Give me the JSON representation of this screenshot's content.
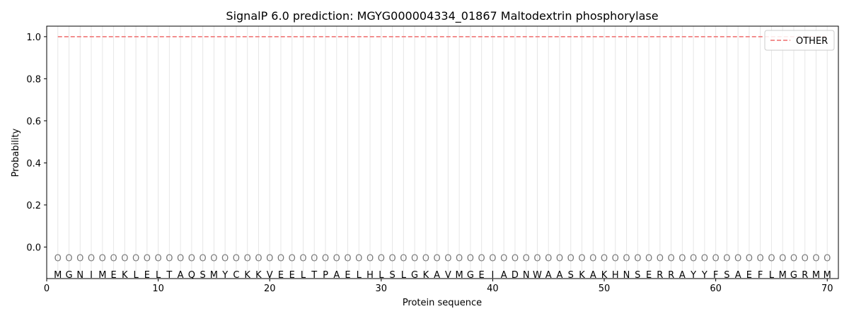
{
  "chart_data": {
    "type": "line",
    "title": "SignalP 6.0 prediction: MGYG000004334_01867 Maltodextrin phosphorylase",
    "xlabel": "Protein sequence",
    "ylabel": "Probability",
    "xlim": [
      0,
      71
    ],
    "ylim": [
      -0.15,
      1.05
    ],
    "x_ticks": [
      0,
      10,
      20,
      30,
      40,
      50,
      60,
      70
    ],
    "y_ticks": [
      0.0,
      0.2,
      0.4,
      0.6,
      0.8,
      1.0
    ],
    "grid": "vertical lines at each residue",
    "legend_position": "top-right",
    "series": [
      {
        "name": "OTHER",
        "color": "#f08080",
        "line_style": "dashed",
        "x": [
          1,
          70
        ],
        "values": [
          1.0,
          1.0
        ]
      }
    ],
    "sequence": [
      "M",
      "G",
      "N",
      "I",
      "M",
      "E",
      "K",
      "L",
      "E",
      "L",
      "T",
      "A",
      "Q",
      "S",
      "M",
      "Y",
      "C",
      "K",
      "K",
      "V",
      "E",
      "E",
      "L",
      "T",
      "P",
      "A",
      "E",
      "L",
      "H",
      "L",
      "S",
      "L",
      "G",
      "K",
      "A",
      "V",
      "M",
      "G",
      "E",
      "I",
      "A",
      "D",
      "N",
      "W",
      "A",
      "A",
      "S",
      "K",
      "A",
      "K",
      "H",
      "N",
      "S",
      "E",
      "R",
      "R",
      "A",
      "Y",
      "Y",
      "F",
      "S",
      "A",
      "E",
      "F",
      "L",
      "M",
      "G",
      "R",
      "M",
      "M"
    ],
    "predicted_labels": [
      "O",
      "O",
      "O",
      "O",
      "O",
      "O",
      "O",
      "O",
      "O",
      "O",
      "O",
      "O",
      "O",
      "O",
      "O",
      "O",
      "O",
      "O",
      "O",
      "O",
      "O",
      "O",
      "O",
      "O",
      "O",
      "O",
      "O",
      "O",
      "O",
      "O",
      "O",
      "O",
      "O",
      "O",
      "O",
      "O",
      "O",
      "O",
      "O",
      "O",
      "O",
      "O",
      "O",
      "O",
      "O",
      "O",
      "O",
      "O",
      "O",
      "O",
      "O",
      "O",
      "O",
      "O",
      "O",
      "O",
      "O",
      "O",
      "O",
      "O",
      "O",
      "O",
      "O",
      "O",
      "O",
      "O",
      "O",
      "O",
      "O",
      "O"
    ],
    "label_y": -0.05,
    "residue_y": -0.1
  }
}
